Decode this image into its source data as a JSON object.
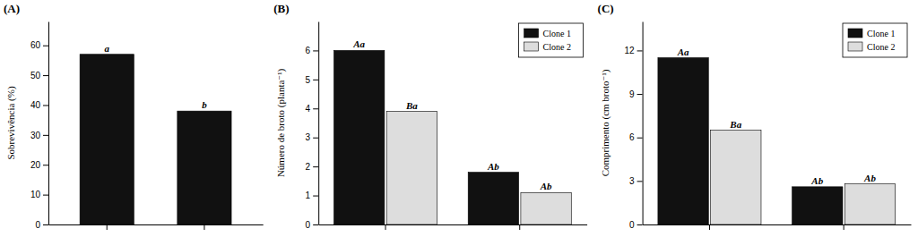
{
  "chart_data": [
    {
      "type": "bar",
      "title": "(A)",
      "categories": [
        null,
        null
      ],
      "values": [
        57,
        38
      ],
      "annotations": [
        "a",
        "b"
      ],
      "color": "#111111",
      "ylabel": "Sobrevivência (%)",
      "ylim": [
        0,
        68
      ],
      "yticks": [
        0,
        10,
        20,
        30,
        40,
        50,
        60
      ]
    },
    {
      "type": "bar",
      "title": "(B)",
      "categories": [
        null,
        null
      ],
      "series": [
        {
          "name": "Clone 1",
          "color": "#111111",
          "values": [
            6.0,
            1.8
          ],
          "annotations": [
            "Aa",
            "Ab"
          ]
        },
        {
          "name": "Clone 2",
          "color": "#dddddd",
          "values": [
            3.9,
            1.1
          ],
          "annotations": [
            "Ba",
            "Ab"
          ]
        }
      ],
      "ylabel": "Número de broto (planta⁻¹)",
      "ylim": [
        0,
        7
      ],
      "yticks": [
        0,
        1,
        2,
        3,
        4,
        5,
        6
      ],
      "legend": "upper right"
    },
    {
      "type": "bar",
      "title": "(C)",
      "categories": [
        null,
        null
      ],
      "series": [
        {
          "name": "Clone 1",
          "color": "#111111",
          "values": [
            11.5,
            2.6
          ],
          "annotations": [
            "Aa",
            "Ab"
          ]
        },
        {
          "name": "Clone 2",
          "color": "#dddddd",
          "values": [
            6.5,
            2.8
          ],
          "annotations": [
            "Ba",
            "Ab"
          ]
        }
      ],
      "ylabel": "Comprimento (cm broto⁻¹)",
      "ylim": [
        0,
        14
      ],
      "yticks": [
        0,
        3,
        6,
        9,
        12
      ],
      "legend": "upper right"
    }
  ]
}
